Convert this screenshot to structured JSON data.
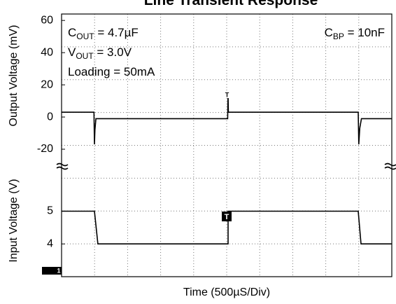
{
  "chart_data": [
    {
      "type": "line",
      "title": "Line Transient Response",
      "ylabel": "Output Voltage  (mV)",
      "xlim": [
        0,
        5000
      ],
      "ylim": [
        -30,
        64
      ],
      "yticks": [
        60,
        40,
        20,
        0,
        -20
      ],
      "x": [
        0,
        490,
        498,
        505,
        520,
        545,
        2515,
        2520,
        2525,
        2540,
        4485,
        4492,
        4500,
        4515,
        4540,
        5000
      ],
      "values": [
        3,
        3,
        -17,
        -8,
        -1,
        -1,
        -1,
        15,
        3,
        3,
        3,
        3,
        -17,
        -7,
        -1,
        -1
      ],
      "color": "#000000",
      "annotations": [
        {
          "main": "C",
          "sub": "OUT",
          "rest": " = 4.7µF"
        },
        {
          "main": "V",
          "sub": "OUT",
          "rest": " = 3.0V"
        },
        {
          "main": "Loading = 50mA"
        },
        {
          "main": "C",
          "sub": "BP",
          "rest": " = 10nF"
        }
      ],
      "marker": "T"
    },
    {
      "type": "line",
      "ylabel": "Input Voltage (V)",
      "xlabel": "Time (500µS/Div)",
      "xlim": [
        0,
        5000
      ],
      "ylim": [
        3,
        6.4
      ],
      "yticks": [
        5,
        4
      ],
      "x": [
        0,
        498,
        550,
        2521,
        2521,
        4492,
        4534,
        5000
      ],
      "values": [
        5,
        5,
        4,
        4,
        5,
        5,
        4,
        4
      ],
      "color": "#000000",
      "marker": "T",
      "channel": "1"
    }
  ]
}
